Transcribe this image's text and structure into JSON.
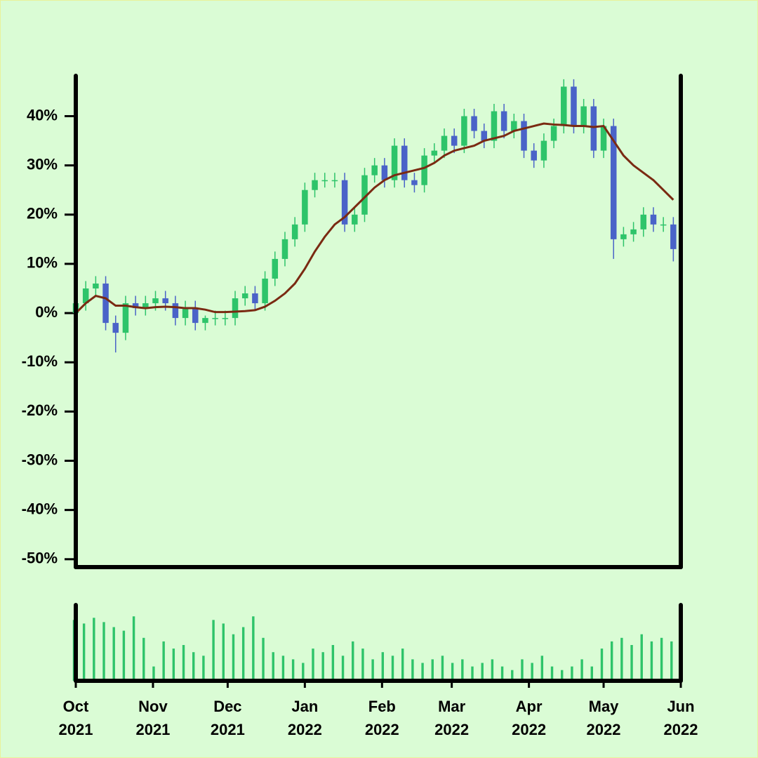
{
  "chart_data": {
    "type": "candlestick",
    "xlim": [
      0,
      243
    ],
    "xticks": [
      {
        "value": 0,
        "label": "Oct\n2021"
      },
      {
        "value": 31,
        "label": "Nov\n2021"
      },
      {
        "value": 61,
        "label": "Dec\n2021"
      },
      {
        "value": 92,
        "label": "Jan\n2022"
      },
      {
        "value": 123,
        "label": "Feb\n2022"
      },
      {
        "value": 151,
        "label": "Mar\n2022"
      },
      {
        "value": 182,
        "label": "Apr\n2022"
      },
      {
        "value": 212,
        "label": "May\n2022"
      },
      {
        "value": 243,
        "label": "Jun\n2022"
      }
    ],
    "ylim": [
      -51.6,
      48.2
    ],
    "yticks": [
      {
        "value": -50,
        "label": "-50%"
      },
      {
        "value": -40,
        "label": "-40%"
      },
      {
        "value": -30,
        "label": "-30%"
      },
      {
        "value": -20,
        "label": "-20%"
      },
      {
        "value": -10,
        "label": "-10%"
      },
      {
        "value": 0,
        "label": "0%"
      },
      {
        "value": 10,
        "label": "10%"
      },
      {
        "value": 20,
        "label": "20%"
      },
      {
        "value": 30,
        "label": "30%"
      },
      {
        "value": 40,
        "label": "40%"
      }
    ],
    "x": [
      0,
      4,
      8,
      12,
      16,
      20,
      24,
      28,
      32,
      36,
      40,
      44,
      48,
      52,
      56,
      60,
      64,
      68,
      72,
      76,
      80,
      84,
      88,
      92,
      96,
      100,
      104,
      108,
      112,
      116,
      120,
      124,
      128,
      132,
      136,
      140,
      144,
      148,
      152,
      156,
      160,
      164,
      168,
      172,
      176,
      180,
      184,
      188,
      192,
      196,
      200,
      204,
      208,
      212,
      216,
      220,
      224,
      228,
      232,
      236,
      240
    ],
    "open": [
      0,
      2,
      5,
      6,
      -2,
      -4,
      2,
      1,
      2,
      3,
      2,
      -1,
      1,
      -2,
      -1,
      -1,
      -1,
      3,
      4,
      2,
      7,
      11,
      15,
      18,
      25,
      27,
      27,
      27,
      18,
      20,
      28,
      30,
      27,
      34,
      27,
      26,
      32,
      33,
      36,
      34,
      40,
      37,
      35,
      41,
      37,
      39,
      33,
      31,
      35,
      38,
      46,
      38,
      42,
      33,
      38,
      15,
      16,
      17,
      20,
      18,
      18
    ],
    "high": [
      3.5,
      6.5,
      7.5,
      7.5,
      -0.5,
      3.5,
      3.5,
      3.5,
      4.5,
      4.5,
      3.5,
      2.5,
      2.5,
      -0.5,
      0.5,
      0.5,
      4.5,
      5.5,
      5.5,
      8.5,
      12.5,
      16.5,
      19.5,
      26.5,
      28.5,
      28.5,
      28.5,
      28.5,
      21.5,
      29.5,
      31.5,
      31.5,
      35.5,
      35.5,
      28.5,
      33.5,
      34.5,
      37.5,
      37.5,
      41.5,
      41.5,
      38.5,
      42.5,
      42.5,
      40.5,
      40.5,
      34.5,
      36.5,
      39.5,
      47.5,
      47.5,
      43.5,
      43.5,
      39.5,
      39.5,
      17.5,
      18.5,
      21.5,
      21.5,
      19.5,
      19.5
    ],
    "low": [
      -1.5,
      0.5,
      3.5,
      -3.5,
      -8,
      -5.5,
      -0.5,
      -0.5,
      0.5,
      0.5,
      -2.5,
      -2.5,
      -3.5,
      -3.5,
      -2.5,
      -2.5,
      -2.5,
      1.5,
      0.5,
      0.5,
      5.5,
      9.5,
      13.5,
      16.5,
      23.5,
      25.5,
      25.5,
      16.5,
      16.5,
      18.5,
      26.5,
      25.5,
      25.5,
      25.5,
      24.5,
      24.5,
      30.5,
      31.5,
      32.5,
      32.5,
      35.5,
      33.5,
      33.5,
      35.5,
      35.5,
      31.5,
      29.5,
      29.5,
      33.5,
      36.5,
      36.5,
      36.5,
      31.5,
      31.5,
      11,
      13.5,
      14.5,
      15.5,
      16.5,
      16.5,
      10.5
    ],
    "close": [
      2,
      5,
      6,
      -2,
      -4,
      2,
      1,
      2,
      3,
      2,
      -1,
      1,
      -2,
      -1,
      -1,
      -1,
      3,
      4,
      2,
      7,
      11,
      15,
      18,
      25,
      27,
      27,
      27,
      18,
      20,
      28,
      30,
      27,
      34,
      27,
      26,
      32,
      33,
      36,
      34,
      40,
      37,
      35,
      41,
      37,
      39,
      33,
      31,
      35,
      38,
      46,
      38,
      42,
      33,
      38,
      15,
      16,
      17,
      20,
      18,
      18,
      13
    ],
    "colors": {
      "up": "#2ec46a",
      "down": "#4a63c8"
    },
    "moving_average": {
      "color": "#7a2a12",
      "values": [
        0,
        2,
        3.5,
        3,
        1.5,
        1.5,
        1.2,
        1,
        1.2,
        1.3,
        1.2,
        1,
        1,
        0.7,
        0.2,
        0.2,
        0.3,
        0.4,
        0.6,
        1.3,
        2.5,
        4,
        6,
        9,
        12.5,
        15.5,
        18,
        19.5,
        21.5,
        23.5,
        25.5,
        27,
        28,
        28.5,
        29,
        29.5,
        30.5,
        32,
        33,
        33.5,
        34,
        35,
        35.5,
        36,
        37,
        37.5,
        38,
        38.5,
        38.3,
        38.2,
        38,
        38,
        37.8,
        38,
        35,
        32,
        30,
        28.5,
        27,
        25,
        23
      ]
    },
    "volume": {
      "color": "#2ec46a",
      "ylim": [
        0,
        100
      ],
      "values": [
        85,
        80,
        88,
        82,
        75,
        70,
        90,
        60,
        20,
        55,
        45,
        50,
        40,
        35,
        85,
        80,
        65,
        75,
        90,
        60,
        40,
        35,
        30,
        25,
        45,
        40,
        50,
        35,
        55,
        45,
        30,
        40,
        35,
        45,
        30,
        25,
        30,
        35,
        25,
        30,
        20,
        25,
        30,
        20,
        15,
        30,
        25,
        35,
        20,
        15,
        20,
        30,
        20,
        45,
        55,
        60,
        50,
        65,
        55,
        60,
        55
      ]
    }
  }
}
